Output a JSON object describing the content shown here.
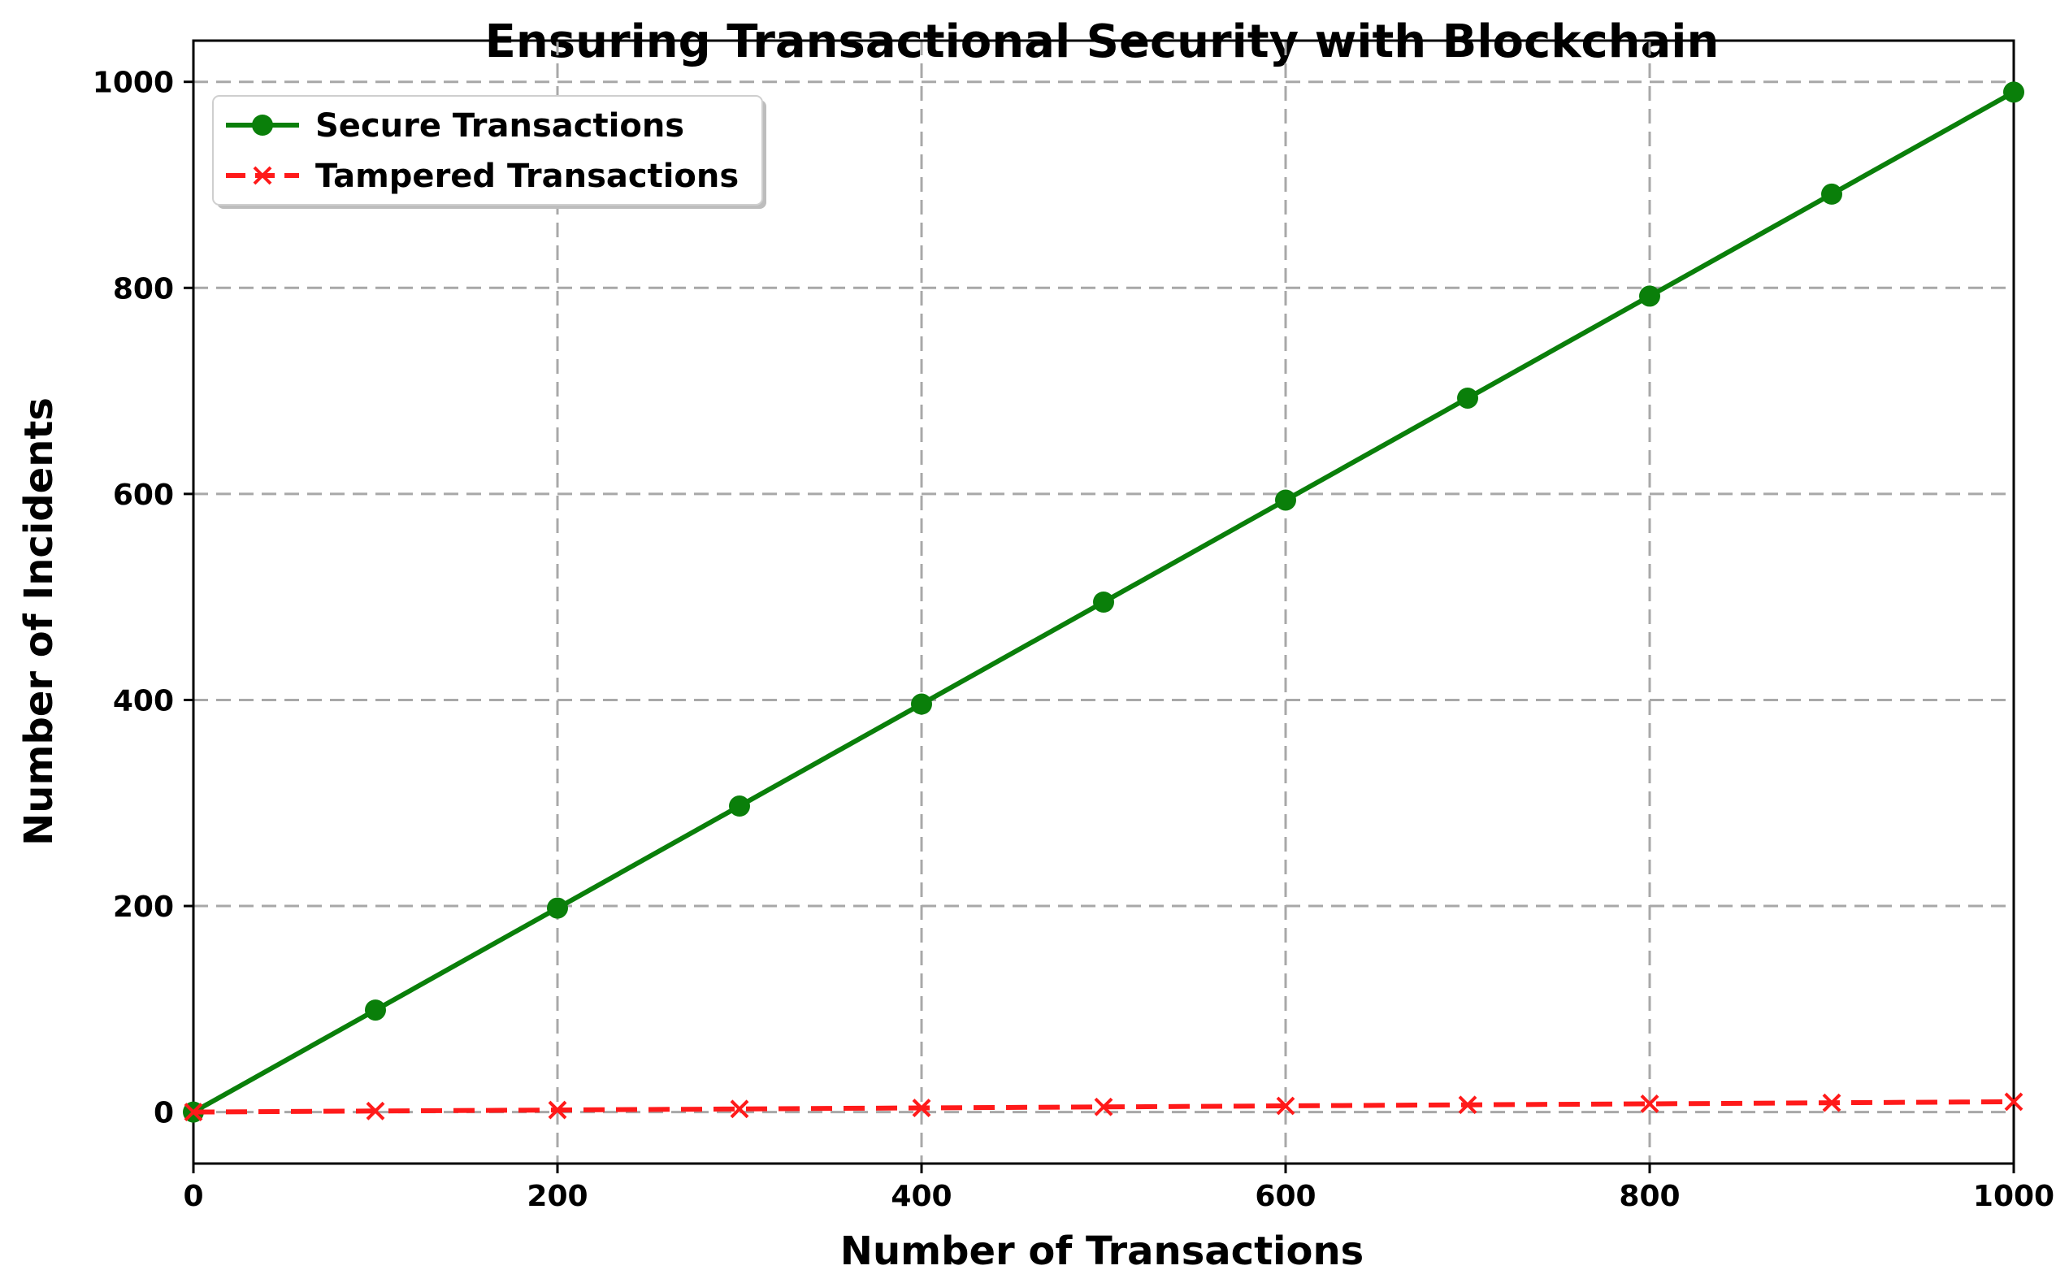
{
  "chart_data": {
    "type": "line",
    "title": "Ensuring Transactional Security with Blockchain",
    "xlabel": "Number of Transactions",
    "ylabel": "Number of Incidents",
    "xlim": [
      0,
      1000
    ],
    "ylim": [
      -50,
      1040
    ],
    "x_ticks": [
      0,
      200,
      400,
      600,
      800,
      1000
    ],
    "y_ticks": [
      0,
      200,
      400,
      600,
      800,
      1000
    ],
    "x_tick_labels": [
      "0",
      "200",
      "400",
      "600",
      "800",
      "1000"
    ],
    "y_tick_labels": [
      "0",
      "200",
      "400",
      "600",
      "800",
      "1000"
    ],
    "grid": true,
    "legend_position": "upper-left",
    "x": [
      0,
      100,
      200,
      300,
      400,
      500,
      600,
      700,
      800,
      900,
      1000
    ],
    "series": [
      {
        "name": "Secure Transactions",
        "color": "#0a7f0a",
        "marker": "circle",
        "line_style": "solid",
        "values": [
          0,
          99,
          198,
          297,
          396,
          495,
          594,
          693,
          792,
          891,
          990
        ]
      },
      {
        "name": "Tampered Transactions",
        "color": "#ff1a1a",
        "marker": "x",
        "line_style": "dashed",
        "values": [
          0,
          1,
          2,
          3,
          4,
          5,
          6,
          7,
          8,
          9,
          10
        ]
      }
    ]
  }
}
